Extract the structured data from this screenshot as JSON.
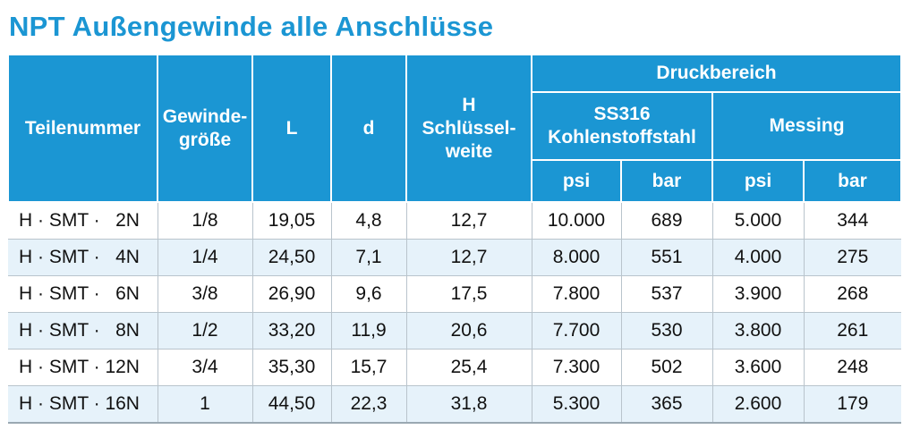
{
  "title": "NPT Außengewinde alle Anschlüsse",
  "table": {
    "header": {
      "part": "Teilenummer",
      "thread": "Gewinde-\ngröße",
      "l": "L",
      "d": "d",
      "h": "H\nSchlüssel-\nweite",
      "pressure": "Druckbereich",
      "steel": "SS316\nKohlenstoffstahl",
      "brass": "Messing",
      "units": [
        "psi",
        "bar",
        "psi",
        "bar"
      ]
    },
    "rows": [
      [
        "H · SMT ·   2N",
        "1/8",
        "19,05",
        "4,8",
        "12,7",
        "10.000",
        "689",
        "5.000",
        "344"
      ],
      [
        "H · SMT ·   4N",
        "1/4",
        "24,50",
        "7,1",
        "12,7",
        "8.000",
        "551",
        "4.000",
        "275"
      ],
      [
        "H · SMT ·   6N",
        "3/8",
        "26,90",
        "9,6",
        "17,5",
        "7.800",
        "537",
        "3.900",
        "268"
      ],
      [
        "H · SMT ·   8N",
        "1/2",
        "33,20",
        "11,9",
        "20,6",
        "7.700",
        "530",
        "3.800",
        "261"
      ],
      [
        "H · SMT · 12N",
        "3/4",
        "35,30",
        "15,7",
        "25,4",
        "7.300",
        "502",
        "3.600",
        "248"
      ],
      [
        "H · SMT · 16N",
        "1",
        "44,50",
        "22,3",
        "31,8",
        "5.300",
        "365",
        "2.600",
        "179"
      ]
    ]
  }
}
